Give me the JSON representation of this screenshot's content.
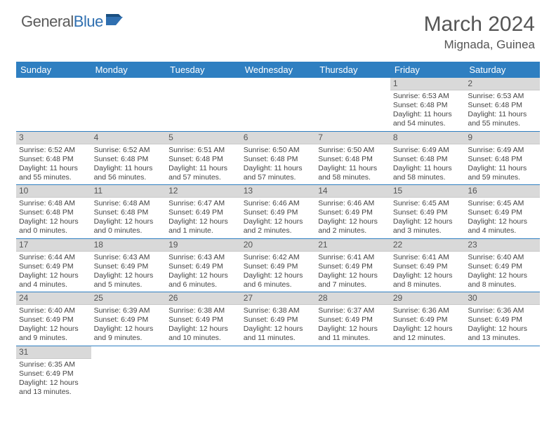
{
  "logo": {
    "part1": "General",
    "part2": "Blue"
  },
  "title": "March 2024",
  "location": "Mignada, Guinea",
  "colors": {
    "header_bg": "#2f7fc1",
    "daynum_bg": "#d9d9d9",
    "row_border": "#2f7fc1",
    "logo_gray": "#5a5a5a",
    "logo_blue": "#2f6fb0"
  },
  "weekdays": [
    "Sunday",
    "Monday",
    "Tuesday",
    "Wednesday",
    "Thursday",
    "Friday",
    "Saturday"
  ],
  "weeks": [
    [
      null,
      null,
      null,
      null,
      null,
      {
        "n": "1",
        "sr": "6:53 AM",
        "ss": "6:48 PM",
        "dl": "11 hours and 54 minutes."
      },
      {
        "n": "2",
        "sr": "6:53 AM",
        "ss": "6:48 PM",
        "dl": "11 hours and 55 minutes."
      }
    ],
    [
      {
        "n": "3",
        "sr": "6:52 AM",
        "ss": "6:48 PM",
        "dl": "11 hours and 55 minutes."
      },
      {
        "n": "4",
        "sr": "6:52 AM",
        "ss": "6:48 PM",
        "dl": "11 hours and 56 minutes."
      },
      {
        "n": "5",
        "sr": "6:51 AM",
        "ss": "6:48 PM",
        "dl": "11 hours and 57 minutes."
      },
      {
        "n": "6",
        "sr": "6:50 AM",
        "ss": "6:48 PM",
        "dl": "11 hours and 57 minutes."
      },
      {
        "n": "7",
        "sr": "6:50 AM",
        "ss": "6:48 PM",
        "dl": "11 hours and 58 minutes."
      },
      {
        "n": "8",
        "sr": "6:49 AM",
        "ss": "6:48 PM",
        "dl": "11 hours and 58 minutes."
      },
      {
        "n": "9",
        "sr": "6:49 AM",
        "ss": "6:48 PM",
        "dl": "11 hours and 59 minutes."
      }
    ],
    [
      {
        "n": "10",
        "sr": "6:48 AM",
        "ss": "6:48 PM",
        "dl": "12 hours and 0 minutes."
      },
      {
        "n": "11",
        "sr": "6:48 AM",
        "ss": "6:48 PM",
        "dl": "12 hours and 0 minutes."
      },
      {
        "n": "12",
        "sr": "6:47 AM",
        "ss": "6:49 PM",
        "dl": "12 hours and 1 minute."
      },
      {
        "n": "13",
        "sr": "6:46 AM",
        "ss": "6:49 PM",
        "dl": "12 hours and 2 minutes."
      },
      {
        "n": "14",
        "sr": "6:46 AM",
        "ss": "6:49 PM",
        "dl": "12 hours and 2 minutes."
      },
      {
        "n": "15",
        "sr": "6:45 AM",
        "ss": "6:49 PM",
        "dl": "12 hours and 3 minutes."
      },
      {
        "n": "16",
        "sr": "6:45 AM",
        "ss": "6:49 PM",
        "dl": "12 hours and 4 minutes."
      }
    ],
    [
      {
        "n": "17",
        "sr": "6:44 AM",
        "ss": "6:49 PM",
        "dl": "12 hours and 4 minutes."
      },
      {
        "n": "18",
        "sr": "6:43 AM",
        "ss": "6:49 PM",
        "dl": "12 hours and 5 minutes."
      },
      {
        "n": "19",
        "sr": "6:43 AM",
        "ss": "6:49 PM",
        "dl": "12 hours and 6 minutes."
      },
      {
        "n": "20",
        "sr": "6:42 AM",
        "ss": "6:49 PM",
        "dl": "12 hours and 6 minutes."
      },
      {
        "n": "21",
        "sr": "6:41 AM",
        "ss": "6:49 PM",
        "dl": "12 hours and 7 minutes."
      },
      {
        "n": "22",
        "sr": "6:41 AM",
        "ss": "6:49 PM",
        "dl": "12 hours and 8 minutes."
      },
      {
        "n": "23",
        "sr": "6:40 AM",
        "ss": "6:49 PM",
        "dl": "12 hours and 8 minutes."
      }
    ],
    [
      {
        "n": "24",
        "sr": "6:40 AM",
        "ss": "6:49 PM",
        "dl": "12 hours and 9 minutes."
      },
      {
        "n": "25",
        "sr": "6:39 AM",
        "ss": "6:49 PM",
        "dl": "12 hours and 9 minutes."
      },
      {
        "n": "26",
        "sr": "6:38 AM",
        "ss": "6:49 PM",
        "dl": "12 hours and 10 minutes."
      },
      {
        "n": "27",
        "sr": "6:38 AM",
        "ss": "6:49 PM",
        "dl": "12 hours and 11 minutes."
      },
      {
        "n": "28",
        "sr": "6:37 AM",
        "ss": "6:49 PM",
        "dl": "12 hours and 11 minutes."
      },
      {
        "n": "29",
        "sr": "6:36 AM",
        "ss": "6:49 PM",
        "dl": "12 hours and 12 minutes."
      },
      {
        "n": "30",
        "sr": "6:36 AM",
        "ss": "6:49 PM",
        "dl": "12 hours and 13 minutes."
      }
    ],
    [
      {
        "n": "31",
        "sr": "6:35 AM",
        "ss": "6:49 PM",
        "dl": "12 hours and 13 minutes."
      },
      null,
      null,
      null,
      null,
      null,
      null
    ]
  ],
  "labels": {
    "sunrise": "Sunrise: ",
    "sunset": "Sunset: ",
    "daylight": "Daylight: "
  }
}
